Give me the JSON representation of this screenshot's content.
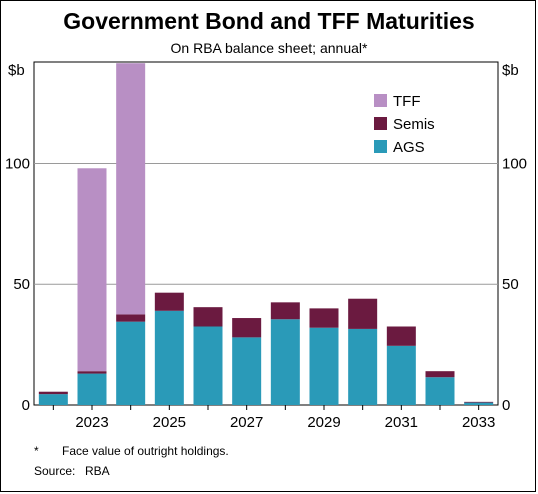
{
  "chart_data": {
    "type": "bar",
    "stacked": true,
    "title": "Government Bond and TFF Maturities",
    "subtitle": "On RBA balance sheet; annual*",
    "ylabel_left": "$b",
    "ylabel_right": "$b",
    "ylim": [
      0,
      142
    ],
    "yticks": [
      0,
      50,
      100
    ],
    "grid": true,
    "legend_position": "top-right",
    "x_tick_labels": [
      "2023",
      "2025",
      "2027",
      "2029",
      "2031",
      "2033"
    ],
    "categories": [
      "2022",
      "2023",
      "2024",
      "2025",
      "2026",
      "2027",
      "2028",
      "2029",
      "2030",
      "2031",
      "2032",
      "2033"
    ],
    "series": [
      {
        "name": "AGS",
        "color": "#2a9ab8",
        "values": [
          4.5,
          13,
          34.5,
          39,
          32.5,
          28,
          35.5,
          32,
          31.5,
          24.5,
          11.5,
          1
        ]
      },
      {
        "name": "Semis",
        "color": "#6b1a40",
        "values": [
          1,
          1,
          3,
          7.5,
          8,
          8,
          7,
          8,
          12.5,
          8,
          2.5,
          0.3
        ]
      },
      {
        "name": "TFF",
        "color": "#b88fc4",
        "values": [
          0,
          84,
          104,
          0,
          0,
          0,
          0,
          0,
          0,
          0,
          0,
          0
        ]
      }
    ]
  },
  "notes": {
    "footnote_marker": "*",
    "footnote_text": "Face value of outright holdings.",
    "source_label": "Source:",
    "source_text": "RBA"
  }
}
